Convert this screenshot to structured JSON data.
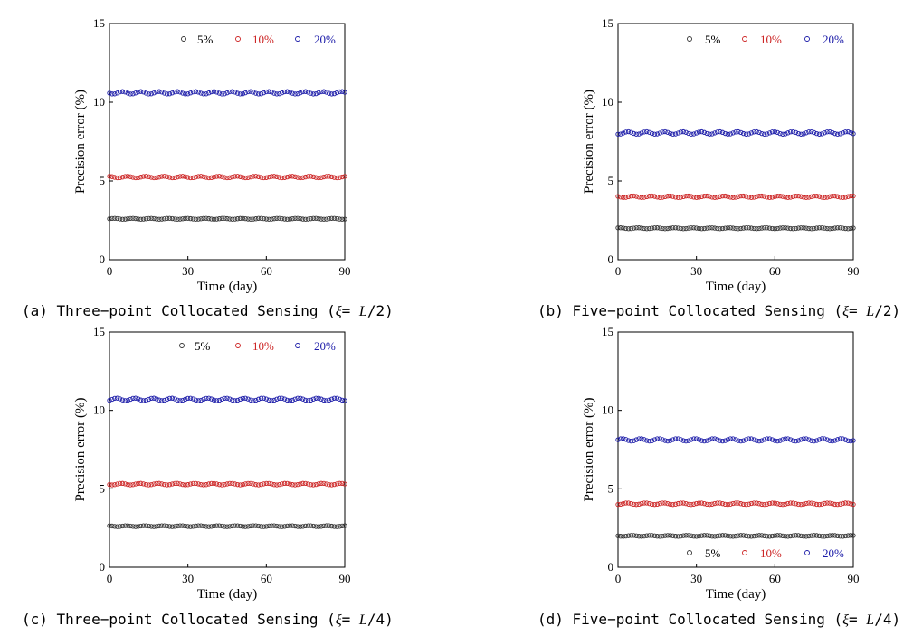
{
  "colors": {
    "s5": "#333333",
    "s10": "#cc2222",
    "s20": "#1a1aa8",
    "axis": "#000000"
  },
  "chart_data": [
    {
      "type": "scatter",
      "caption": {
        "prefix": "(a) Three−point Collocated Sensing (",
        "xi": "ξ",
        "eq": "= ",
        "L": "L",
        "suffix": "/2)"
      },
      "xlabel": "Time (day)",
      "ylabel": "Precision error (%)",
      "xlim": [
        0,
        90
      ],
      "ylim": [
        0,
        15
      ],
      "xticks": [
        "0",
        "30",
        "60",
        "90"
      ],
      "yticks": [
        "0",
        "5",
        "10",
        "15"
      ],
      "legend_position": "top",
      "x": {
        "start": 0,
        "end": 90,
        "step": 1
      },
      "series": [
        {
          "name": "5%",
          "mean": 2.6,
          "amplitude": 0.03
        },
        {
          "name": "10%",
          "mean": 5.25,
          "amplitude": 0.05
        },
        {
          "name": "20%",
          "mean": 10.6,
          "amplitude": 0.08
        }
      ]
    },
    {
      "type": "scatter",
      "caption": {
        "prefix": "(b) Five−point Collocated Sensing (",
        "xi": "ξ",
        "eq": "= ",
        "L": "L",
        "suffix": "/2)"
      },
      "xlabel": "Time (day)",
      "ylabel": "Precision error (%)",
      "xlim": [
        0,
        90
      ],
      "ylim": [
        0,
        15
      ],
      "xticks": [
        "0",
        "30",
        "60",
        "90"
      ],
      "yticks": [
        "0",
        "5",
        "10",
        "15"
      ],
      "legend_position": "top",
      "x": {
        "start": 0,
        "end": 90,
        "step": 1
      },
      "series": [
        {
          "name": "5%",
          "mean": 2.0,
          "amplitude": 0.03
        },
        {
          "name": "10%",
          "mean": 4.0,
          "amplitude": 0.05
        },
        {
          "name": "20%",
          "mean": 8.05,
          "amplitude": 0.08
        }
      ]
    },
    {
      "type": "scatter",
      "caption": {
        "prefix": "(c) Three−point Collocated Sensing (",
        "xi": "ξ",
        "eq": "= ",
        "L": "L",
        "suffix": "/4)"
      },
      "xlabel": "Time (day)",
      "ylabel": "Precision error (%)",
      "xlim": [
        0,
        90
      ],
      "ylim": [
        0,
        15
      ],
      "xticks": [
        "0",
        "30",
        "60",
        "90"
      ],
      "yticks": [
        "0",
        "5",
        "10",
        "15"
      ],
      "legend_position": "top",
      "x": {
        "start": 0,
        "end": 90,
        "step": 1
      },
      "series": [
        {
          "name": "5%",
          "mean": 2.62,
          "amplitude": 0.03
        },
        {
          "name": "10%",
          "mean": 5.3,
          "amplitude": 0.05
        },
        {
          "name": "20%",
          "mean": 10.7,
          "amplitude": 0.08
        }
      ]
    },
    {
      "type": "scatter",
      "caption": {
        "prefix": "(d) Five−point Collocated Sensing (",
        "xi": "ξ",
        "eq": "= ",
        "L": "L",
        "suffix": "/4)"
      },
      "xlabel": "Time (day)",
      "ylabel": "Precision error (%)",
      "xlim": [
        0,
        90
      ],
      "ylim": [
        0,
        15
      ],
      "xticks": [
        "0",
        "30",
        "60",
        "90"
      ],
      "yticks": [
        "0",
        "5",
        "10",
        "15"
      ],
      "legend_position": "bottom",
      "x": {
        "start": 0,
        "end": 90,
        "step": 1
      },
      "series": [
        {
          "name": "5%",
          "mean": 2.0,
          "amplitude": 0.03
        },
        {
          "name": "10%",
          "mean": 4.05,
          "amplitude": 0.05
        },
        {
          "name": "20%",
          "mean": 8.12,
          "amplitude": 0.08
        }
      ]
    }
  ]
}
